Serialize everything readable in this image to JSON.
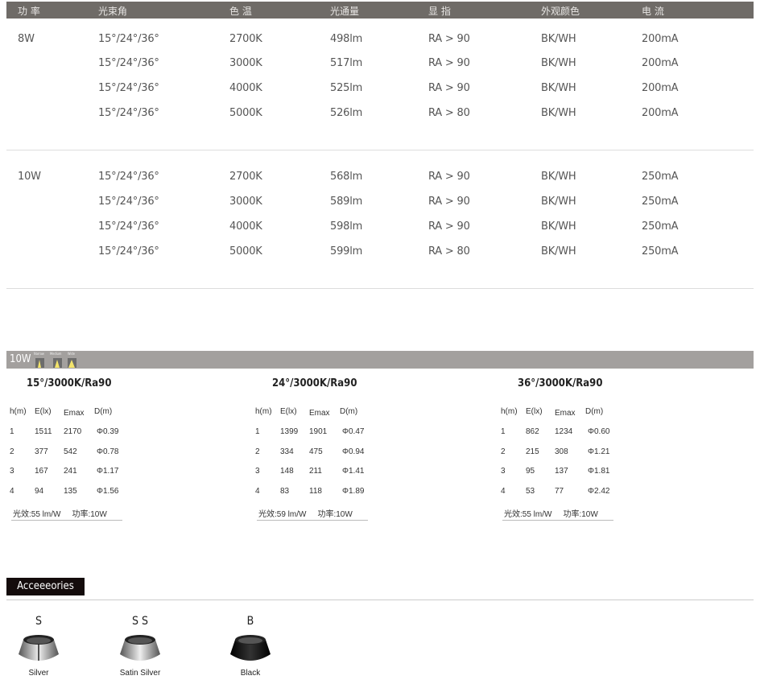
{
  "spec_table": {
    "headers": [
      "功 率",
      "光束角",
      "色 温",
      "光通量",
      "显 指",
      "外观颜色",
      "电 流"
    ],
    "groups": [
      {
        "power": "8W",
        "rows": [
          [
            "15°/24°/36°",
            "2700K",
            "498lm",
            "RA > 90",
            "BK/WH",
            "200mA"
          ],
          [
            "15°/24°/36°",
            "3000K",
            "517lm",
            "RA > 90",
            "BK/WH",
            "200mA"
          ],
          [
            "15°/24°/36°",
            "4000K",
            "525lm",
            "RA > 90",
            "BK/WH",
            "200mA"
          ],
          [
            "15°/24°/36°",
            "5000K",
            "526lm",
            "RA > 80",
            "BK/WH",
            "200mA"
          ]
        ]
      },
      {
        "power": "10W",
        "rows": [
          [
            "15°/24°/36°",
            "2700K",
            "568lm",
            "RA > 90",
            "BK/WH",
            "250mA"
          ],
          [
            "15°/24°/36°",
            "3000K",
            "589lm",
            "RA > 90",
            "BK/WH",
            "250mA"
          ],
          [
            "15°/24°/36°",
            "4000K",
            "598lm",
            "RA > 90",
            "BK/WH",
            "250mA"
          ],
          [
            "15°/24°/36°",
            "5000K",
            "599lm",
            "RA > 80",
            "BK/WH",
            "250mA"
          ]
        ]
      }
    ]
  },
  "photometric": {
    "bar_title": "10W",
    "beam_labels": [
      "Narrow",
      "Medium",
      "Wide"
    ],
    "panels": [
      {
        "title": "15°/3000K/Ra90",
        "headers": [
          "h(m)",
          "E(lx)",
          "Emax",
          "D(m)"
        ],
        "rows": [
          [
            "1",
            "1511",
            "2170",
            "Φ0.39"
          ],
          [
            "2",
            "377",
            "542",
            "Φ0.78"
          ],
          [
            "3",
            "167",
            "241",
            "Φ1.17"
          ],
          [
            "4",
            "94",
            "135",
            "Φ1.56"
          ]
        ],
        "efficacy": "光效:55 lm/W",
        "power": "功率:10W"
      },
      {
        "title": "24°/3000K/Ra90",
        "headers": [
          "h(m)",
          "E(lx)",
          "Emax",
          "D(m)"
        ],
        "rows": [
          [
            "1",
            "1399",
            "1901",
            "Φ0.47"
          ],
          [
            "2",
            "334",
            "475",
            "Φ0.94"
          ],
          [
            "3",
            "148",
            "211",
            "Φ1.41"
          ],
          [
            "4",
            "83",
            "118",
            "Φ1.89"
          ]
        ],
        "efficacy": "光效:59 lm/W",
        "power": "功率:10W"
      },
      {
        "title": "36°/3000K/Ra90",
        "headers": [
          "h(m)",
          "E(lx)",
          "Emax",
          "D(m)"
        ],
        "rows": [
          [
            "1",
            "862",
            "1234",
            "Φ0.60"
          ],
          [
            "2",
            "215",
            "308",
            "Φ1.21"
          ],
          [
            "3",
            "95",
            "137",
            "Φ1.81"
          ],
          [
            "4",
            "53",
            "77",
            "Φ2.42"
          ]
        ],
        "efficacy": "光效:55 lm/W",
        "power": "功率:10W"
      }
    ]
  },
  "accessories": {
    "title": "Acceeeories",
    "items": [
      {
        "code": "S",
        "name": "Silver",
        "color": "#c8c8c8"
      },
      {
        "code": "S S",
        "name": "Satin Silver",
        "color": "#d8d8d8"
      },
      {
        "code": "B",
        "name": "Black",
        "color": "#111111"
      }
    ]
  },
  "colors": {
    "header_bg": "#6f6b67",
    "bar_bg": "#a3a09e",
    "accessories_bg": "#140c0c"
  }
}
